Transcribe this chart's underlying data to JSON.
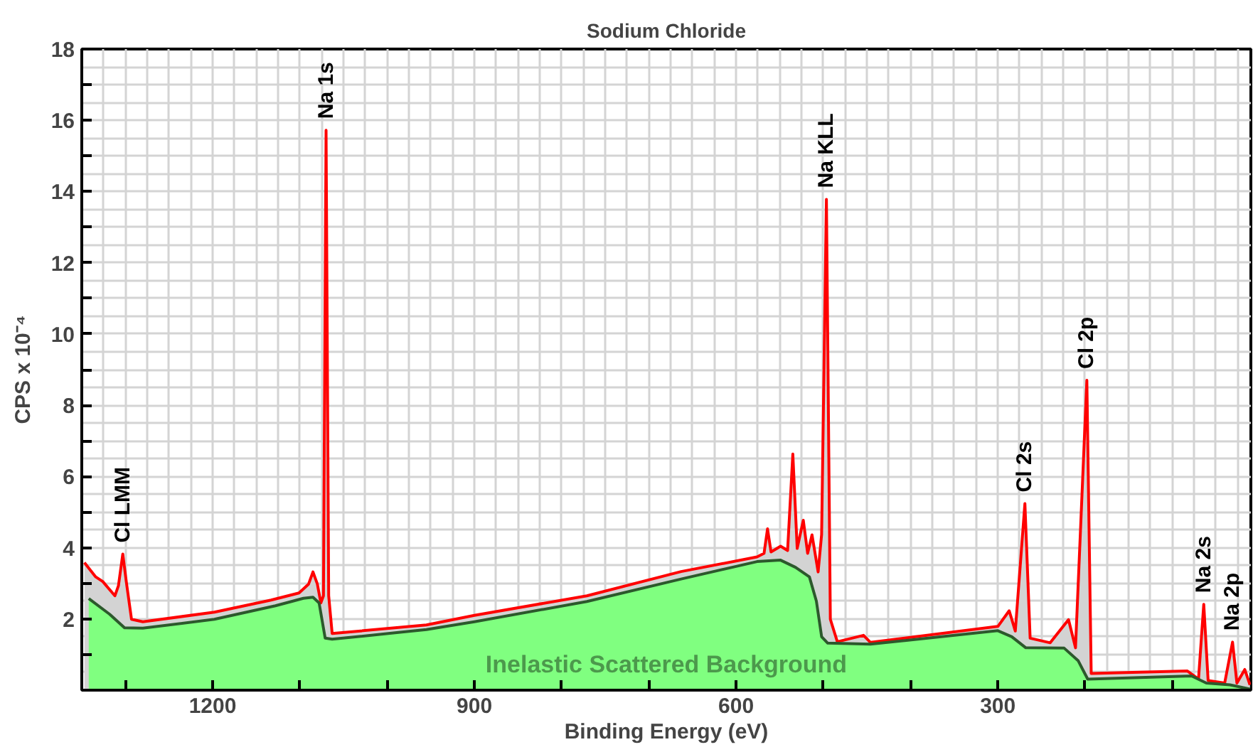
{
  "chart_data": {
    "type": "area",
    "title": "Sodium Chloride",
    "xlabel": "Binding Energy (eV)",
    "ylabel": "CPS x 10⁻⁴",
    "xlim": [
      1350,
      10
    ],
    "ylim": [
      0,
      18
    ],
    "xticks": [
      {
        "value": 1300,
        "label": null
      },
      {
        "value": 1200,
        "label": "1200"
      },
      {
        "value": 1100,
        "label": null
      },
      {
        "value": 1000,
        "label": null
      },
      {
        "value": 900,
        "label": "900"
      },
      {
        "value": 800,
        "label": null
      },
      {
        "value": 700,
        "label": null
      },
      {
        "value": 600,
        "label": "600"
      },
      {
        "value": 500,
        "label": null
      },
      {
        "value": 400,
        "label": null
      },
      {
        "value": 300,
        "label": "300"
      },
      {
        "value": 200,
        "label": null
      },
      {
        "value": 100,
        "label": null
      }
    ],
    "yticks": [
      {
        "value": 1,
        "label": null
      },
      2,
      {
        "value": 3,
        "label": null
      },
      4,
      {
        "value": 5,
        "label": null
      },
      6,
      {
        "value": 7,
        "label": null
      },
      8,
      {
        "value": 9,
        "label": null
      },
      10,
      {
        "value": 11,
        "label": null
      },
      12,
      {
        "value": 13,
        "label": null
      },
      14,
      {
        "value": 15,
        "label": null
      },
      16,
      {
        "value": 17,
        "label": null
      },
      18
    ],
    "grid": true,
    "series": [
      {
        "color": "#ff0000",
        "x": [
          1347,
          1334,
          1326,
          1312,
          1308,
          1303,
          1299,
          1293,
          1280,
          1198,
          1133,
          1101,
          1090,
          1085,
          1080,
          1076,
          1073,
          1070,
          1067,
          1063,
          955,
          900,
          771,
          663,
          576,
          568,
          564,
          560,
          549,
          541,
          535,
          530,
          523,
          518,
          513,
          506,
          502,
          496.5,
          492,
          484,
          454,
          446,
          300,
          287,
          280,
          269,
          263,
          240,
          219,
          211,
          198,
          193,
          83,
          70,
          64,
          59,
          40,
          31,
          26,
          17,
          11
        ],
        "values": [
          3.58,
          3.18,
          3.05,
          2.65,
          2.93,
          3.82,
          3.05,
          1.99,
          1.92,
          2.19,
          2.53,
          2.73,
          2.98,
          3.32,
          2.98,
          2.45,
          2.65,
          15.72,
          2.65,
          1.59,
          1.83,
          2.1,
          2.65,
          3.33,
          3.74,
          3.84,
          4.53,
          3.88,
          4.04,
          3.92,
          6.63,
          3.98,
          4.77,
          3.84,
          4.36,
          3.32,
          4.37,
          13.78,
          1.99,
          1.36,
          1.54,
          1.34,
          1.79,
          2.23,
          1.66,
          5.24,
          1.46,
          1.33,
          1.98,
          1.19,
          8.7,
          0.47,
          0.54,
          0.31,
          2.41,
          0.27,
          0.2,
          1.35,
          0.2,
          0.58,
          0.15
        ]
      },
      {
        "color": "#80ff80",
        "x": [
          1342,
          1318,
          1301,
          1280,
          1198,
          1128,
          1096,
          1085,
          1078,
          1071,
          1063,
          987,
          955,
          900,
          771,
          663,
          576,
          549,
          532,
          516,
          508,
          502,
          495,
          446,
          300,
          284,
          268,
          224,
          208,
          197,
          78,
          61,
          34,
          11
        ],
        "values": [
          2.57,
          2.13,
          1.75,
          1.74,
          1.99,
          2.37,
          2.58,
          2.61,
          2.45,
          1.46,
          1.43,
          1.62,
          1.7,
          1.92,
          2.49,
          3.12,
          3.61,
          3.65,
          3.45,
          3.18,
          2.5,
          1.5,
          1.32,
          1.29,
          1.67,
          1.5,
          1.19,
          1.18,
          0.83,
          0.31,
          0.4,
          0.2,
          0.15,
          0.03
        ]
      }
    ],
    "annotations": [
      {
        "text": "Cl LMM",
        "x": 1303,
        "y": 3.82
      },
      {
        "text": "Na 1s",
        "x": 1070,
        "y": 15.72
      },
      {
        "text": "Na KLL",
        "x": 496.5,
        "y": 13.78
      },
      {
        "text": "Cl 2s",
        "x": 269,
        "y": 5.24
      },
      {
        "text": "Cl 2p",
        "x": 198,
        "y": 8.7
      },
      {
        "text": "Na 2s",
        "x": 64,
        "y": 2.41
      },
      {
        "text": "Na 2p",
        "x": 31,
        "y": 1.35
      },
      "Inelastic Scattered Background"
    ]
  }
}
